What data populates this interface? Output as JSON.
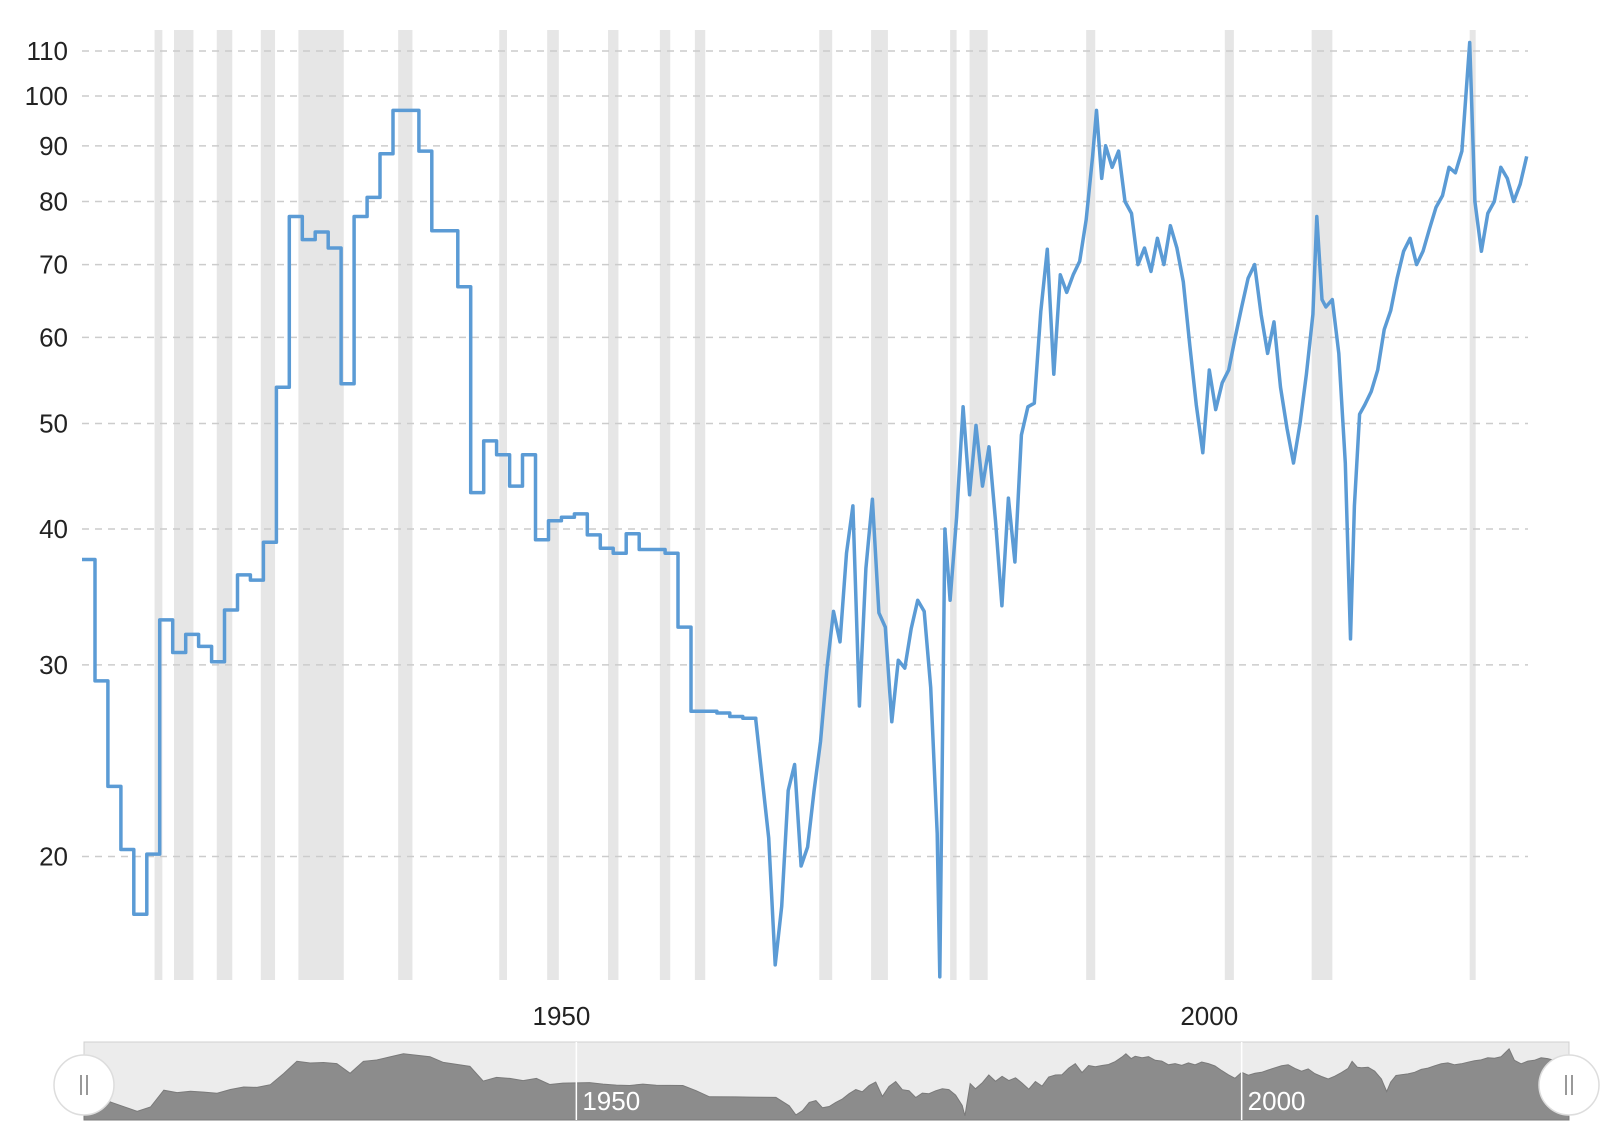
{
  "chart_data": {
    "type": "line",
    "title": "",
    "xlabel": "",
    "ylabel": "",
    "y_scale": "log",
    "x_range": [
      1913,
      2024.6
    ],
    "y_range": [
      15.4,
      115
    ],
    "y_ticks": [
      20,
      30,
      40,
      50,
      60,
      70,
      80,
      90,
      100,
      110
    ],
    "y_tick_labels": [
      "20",
      "30",
      "40",
      "50",
      "60",
      "70",
      "80",
      "90",
      "100",
      "110"
    ],
    "x_ticks": [
      1950,
      2000
    ],
    "x_tick_labels": [
      "1950",
      "2000"
    ],
    "grid": "horizontal-dashed",
    "legend": "none",
    "colors": {
      "line": "#5b9bd5",
      "recession": "#e6e6e6",
      "grid": "#cccccc",
      "navigator_fill": "#8c8c8c",
      "navigator_bg": "#ececec",
      "handle": "#ffffff"
    },
    "recessions": [
      [
        1918.6,
        1919.2
      ],
      [
        1920.1,
        1921.6
      ],
      [
        1923.4,
        1924.6
      ],
      [
        1926.8,
        1927.9
      ],
      [
        1929.7,
        1933.2
      ],
      [
        1937.4,
        1938.5
      ],
      [
        1945.2,
        1945.8
      ],
      [
        1948.9,
        1949.8
      ],
      [
        1953.6,
        1954.4
      ],
      [
        1957.6,
        1958.4
      ],
      [
        1960.3,
        1961.1
      ],
      [
        1969.9,
        1970.9
      ],
      [
        1973.9,
        1975.2
      ],
      [
        1980.0,
        1980.5
      ],
      [
        1981.5,
        1982.9
      ],
      [
        1990.5,
        1991.2
      ],
      [
        2001.2,
        2001.9
      ],
      [
        2007.9,
        2009.5
      ],
      [
        2020.1,
        2020.3
      ]
    ],
    "series": [
      {
        "values": [
          [
            1913.0,
            37.5
          ],
          [
            1914.0,
            29.0
          ],
          [
            1915.0,
            23.2
          ],
          [
            1916.0,
            20.3
          ],
          [
            1917.0,
            17.7
          ],
          [
            1918.0,
            20.1
          ],
          [
            1919.0,
            33.0
          ],
          [
            1920.0,
            30.8
          ],
          [
            1921.0,
            32.0
          ],
          [
            1922.0,
            31.2
          ],
          [
            1923.0,
            30.2
          ],
          [
            1924.0,
            33.7
          ],
          [
            1925.0,
            36.3
          ],
          [
            1926.0,
            35.9
          ],
          [
            1927.0,
            38.9
          ],
          [
            1928.0,
            54.0
          ],
          [
            1929.0,
            77.5
          ],
          [
            1930.0,
            73.8
          ],
          [
            1931.0,
            75.0
          ],
          [
            1932.0,
            72.5
          ],
          [
            1933.0,
            54.4
          ],
          [
            1934.0,
            77.5
          ],
          [
            1935.0,
            80.7
          ],
          [
            1936.0,
            88.5
          ],
          [
            1937.0,
            97.0
          ],
          [
            1939.0,
            89.0
          ],
          [
            1940.0,
            75.2
          ],
          [
            1942.0,
            66.8
          ],
          [
            1943.0,
            43.2
          ],
          [
            1944.0,
            48.2
          ],
          [
            1945.0,
            46.8
          ],
          [
            1946.0,
            43.8
          ],
          [
            1947.0,
            46.8
          ],
          [
            1948.0,
            39.1
          ],
          [
            1949.0,
            40.7
          ],
          [
            1950.0,
            41.0
          ],
          [
            1951.0,
            41.3
          ],
          [
            1952.0,
            39.5
          ],
          [
            1953.0,
            38.4
          ],
          [
            1954.0,
            38.0
          ],
          [
            1955.0,
            39.6
          ],
          [
            1956.0,
            38.3
          ],
          [
            1958.0,
            38.0
          ],
          [
            1959.0,
            32.5
          ],
          [
            1960.0,
            27.2
          ],
          [
            1962.0,
            27.1
          ],
          [
            1963.0,
            26.9
          ],
          [
            1964.0,
            26.8
          ],
          [
            1965.0,
            26.7
          ],
          [
            1966.0,
            20.8
          ],
          [
            1966.5,
            15.9
          ],
          [
            1967.0,
            18.0
          ],
          [
            1967.5,
            23.0
          ],
          [
            1968.0,
            24.3
          ],
          [
            1968.5,
            19.6
          ],
          [
            1969.0,
            20.4
          ],
          [
            1969.5,
            23.0
          ],
          [
            1970.0,
            25.5
          ],
          [
            1970.5,
            29.8
          ],
          [
            1971.0,
            33.6
          ],
          [
            1971.5,
            31.5
          ],
          [
            1972.0,
            38.0
          ],
          [
            1972.5,
            42.0
          ],
          [
            1973.0,
            27.5
          ],
          [
            1973.5,
            36.8
          ],
          [
            1974.0,
            42.6
          ],
          [
            1974.5,
            33.5
          ],
          [
            1975.0,
            32.5
          ],
          [
            1975.5,
            26.6
          ],
          [
            1976.0,
            30.3
          ],
          [
            1976.5,
            29.8
          ],
          [
            1977.0,
            32.4
          ],
          [
            1977.5,
            34.4
          ],
          [
            1978.0,
            33.6
          ],
          [
            1978.5,
            28.6
          ],
          [
            1979.0,
            21.0
          ],
          [
            1979.2,
            15.5
          ],
          [
            1979.6,
            40.0
          ],
          [
            1980.0,
            34.4
          ],
          [
            1980.5,
            41.0
          ],
          [
            1981.0,
            51.8
          ],
          [
            1981.5,
            43.0
          ],
          [
            1982.0,
            49.8
          ],
          [
            1982.5,
            43.8
          ],
          [
            1983.0,
            47.6
          ],
          [
            1983.5,
            40.7
          ],
          [
            1984.0,
            34.0
          ],
          [
            1984.5,
            42.7
          ],
          [
            1985.0,
            37.3
          ],
          [
            1985.5,
            48.8
          ],
          [
            1986.0,
            51.8
          ],
          [
            1986.5,
            52.2
          ],
          [
            1987.0,
            63.4
          ],
          [
            1987.5,
            72.3
          ],
          [
            1988.0,
            55.5
          ],
          [
            1988.5,
            68.5
          ],
          [
            1989.0,
            66.0
          ],
          [
            1989.5,
            68.5
          ],
          [
            1990.0,
            70.5
          ],
          [
            1990.5,
            77.0
          ],
          [
            1991.0,
            88.0
          ],
          [
            1991.3,
            97.0
          ],
          [
            1991.7,
            84.0
          ],
          [
            1992.0,
            90.0
          ],
          [
            1992.5,
            86.0
          ],
          [
            1993.0,
            89.0
          ],
          [
            1993.5,
            80.0
          ],
          [
            1994.0,
            78.0
          ],
          [
            1994.5,
            70.0
          ],
          [
            1995.0,
            72.5
          ],
          [
            1995.5,
            69.0
          ],
          [
            1996.0,
            74.0
          ],
          [
            1996.5,
            70.0
          ],
          [
            1997.0,
            76.0
          ],
          [
            1997.5,
            72.5
          ],
          [
            1998.0,
            67.5
          ],
          [
            1998.5,
            59.0
          ],
          [
            1999.0,
            52.0
          ],
          [
            1999.5,
            47.0
          ],
          [
            2000.0,
            56.0
          ],
          [
            2000.5,
            51.5
          ],
          [
            2001.0,
            54.5
          ],
          [
            2001.5,
            56.0
          ],
          [
            2002.0,
            60.0
          ],
          [
            2002.5,
            64.0
          ],
          [
            2003.0,
            68.0
          ],
          [
            2003.5,
            70.0
          ],
          [
            2004.0,
            63.0
          ],
          [
            2004.5,
            58.0
          ],
          [
            2005.0,
            62.0
          ],
          [
            2005.5,
            54.0
          ],
          [
            2006.0,
            49.5
          ],
          [
            2006.5,
            46.0
          ],
          [
            2007.0,
            50.0
          ],
          [
            2007.5,
            55.5
          ],
          [
            2008.0,
            63.0
          ],
          [
            2008.3,
            77.5
          ],
          [
            2008.7,
            65.0
          ],
          [
            2009.0,
            64.0
          ],
          [
            2009.5,
            65.0
          ],
          [
            2010.0,
            58.0
          ],
          [
            2010.5,
            46.0
          ],
          [
            2010.9,
            31.7
          ],
          [
            2011.2,
            42.0
          ],
          [
            2011.6,
            51.0
          ],
          [
            2012.0,
            52.0
          ],
          [
            2012.5,
            53.5
          ],
          [
            2013.0,
            56.0
          ],
          [
            2013.5,
            61.0
          ],
          [
            2014.0,
            63.5
          ],
          [
            2014.5,
            68.0
          ],
          [
            2015.0,
            72.0
          ],
          [
            2015.5,
            74.0
          ],
          [
            2016.0,
            70.0
          ],
          [
            2016.5,
            72.0
          ],
          [
            2017.0,
            75.5
          ],
          [
            2017.5,
            79.0
          ],
          [
            2018.0,
            81.0
          ],
          [
            2018.5,
            86.0
          ],
          [
            2019.0,
            85.0
          ],
          [
            2019.5,
            89.0
          ],
          [
            2020.1,
            112.0
          ],
          [
            2020.5,
            80.0
          ],
          [
            2021.0,
            72.0
          ],
          [
            2021.5,
            78.0
          ],
          [
            2022.0,
            80.0
          ],
          [
            2022.5,
            86.0
          ],
          [
            2023.0,
            84.0
          ],
          [
            2023.5,
            80.0
          ],
          [
            2024.0,
            83.0
          ],
          [
            2024.5,
            88.0
          ]
        ]
      }
    ],
    "navigator": {
      "labels": [
        "1950",
        "2000"
      ],
      "handle_left_icon": "grip-icon",
      "handle_right_icon": "grip-icon"
    }
  }
}
